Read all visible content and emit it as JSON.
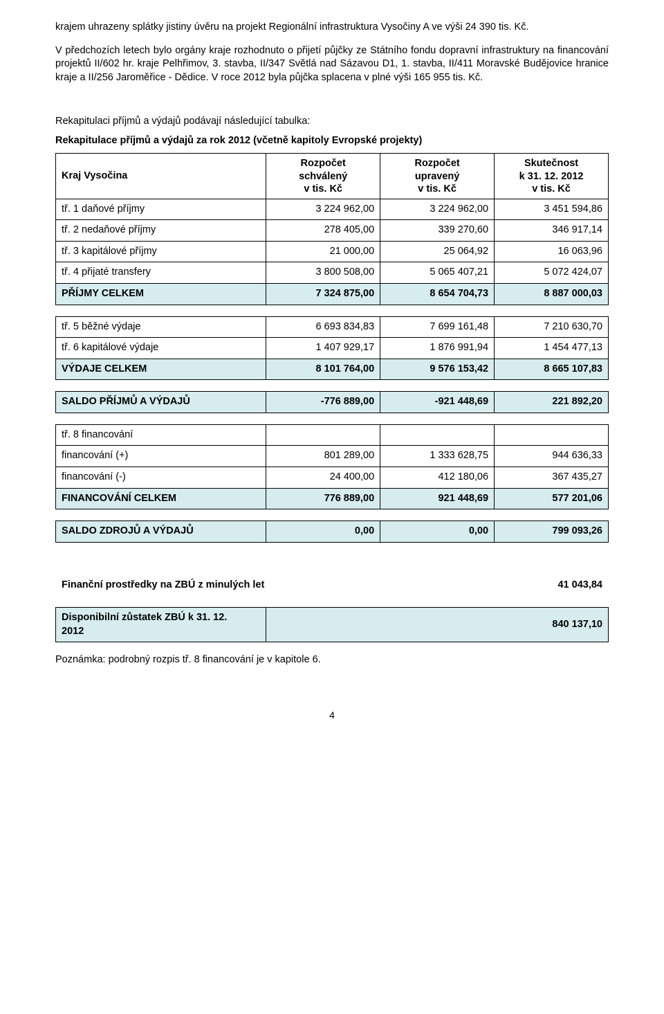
{
  "colors": {
    "highlight_bg": "#d6ecee",
    "border": "#000000",
    "text": "#000000",
    "background": "#ffffff"
  },
  "paragraphs": {
    "p1": "krajem uhrazeny splátky jistiny úvěru na projekt Regionální infrastruktura Vysočiny A ve výši 24 390 tis. Kč.",
    "p2": "V předchozích letech bylo orgány kraje rozhodnuto o přijetí půjčky ze Státního fondu dopravní infrastruktury na financování projektů II/602 hr. kraje Pelhřimov, 3. stavba, II/347 Světlá nad Sázavou D1, 1. stavba, II/411 Moravské Budějovice hranice kraje a II/256 Jaroměřice - Dědice. V roce 2012 byla půjčka splacena v plné výši 165 955 tis. Kč."
  },
  "recap_intro": "Rekapitulaci příjmů a výdajů podávají následující tabulka:",
  "recap_title": "Rekapitulace příjmů a výdajů za rok 2012 (včetně kapitoly Evropské projekty)",
  "table_head": {
    "entity": "Kraj Vysočina",
    "col1_l1": "Rozpočet",
    "col1_l2": "schválený",
    "col1_l3": "v tis. Kč",
    "col2_l1": "Rozpočet",
    "col2_l2": "upravený",
    "col2_l3": "v tis. Kč",
    "col3_l1": "Skutečnost",
    "col3_l2": "k 31. 12. 2012",
    "col3_l3": "v tis. Kč"
  },
  "income": {
    "rows": [
      {
        "label": "tř. 1  daňové příjmy",
        "c1": "3 224 962,00",
        "c2": "3 224 962,00",
        "c3": "3 451 594,86"
      },
      {
        "label": "tř. 2  nedaňové příjmy",
        "c1": "278 405,00",
        "c2": "339 270,60",
        "c3": "346 917,14"
      },
      {
        "label": "tř. 3  kapitálové příjmy",
        "c1": "21 000,00",
        "c2": "25 064,92",
        "c3": "16 063,96"
      },
      {
        "label": "tř. 4  přijaté transfery",
        "c1": "3 800 508,00",
        "c2": "5 065 407,21",
        "c3": "5 072 424,07"
      }
    ],
    "total": {
      "label": "PŘÍJMY CELKEM",
      "c1": "7 324 875,00",
      "c2": "8 654 704,73",
      "c3": "8 887 000,03"
    }
  },
  "expense": {
    "rows": [
      {
        "label": "tř. 5  běžné výdaje",
        "c1": "6 693 834,83",
        "c2": "7 699 161,48",
        "c3": "7 210 630,70"
      },
      {
        "label": "tř. 6  kapitálové výdaje",
        "c1": "1 407 929,17",
        "c2": "1 876 991,94",
        "c3": "1 454 477,13"
      }
    ],
    "total": {
      "label": "VÝDAJE CELKEM",
      "c1": "8 101 764,00",
      "c2": "9 576 153,42",
      "c3": "8 665 107,83"
    }
  },
  "saldo_pv": {
    "label": "SALDO PŘÍJMŮ A VÝDAJŮ",
    "c1": "-776 889,00",
    "c2": "-921 448,69",
    "c3": "221 892,20"
  },
  "financing": {
    "head": "tř. 8  financování",
    "rows": [
      {
        "label": "financování (+)",
        "c1": "801 289,00",
        "c2": "1 333 628,75",
        "c3": "944 636,33"
      },
      {
        "label": "financování (-)",
        "c1": "24 400,00",
        "c2": "412 180,06",
        "c3": "367 435,27"
      }
    ],
    "total": {
      "label": "FINANCOVÁNÍ CELKEM",
      "c1": "776 889,00",
      "c2": "921 448,69",
      "c3": "577 201,06"
    }
  },
  "saldo_zv": {
    "label": "SALDO ZDROJŮ A VÝDAJŮ",
    "c1": "0,00",
    "c2": "0,00",
    "c3": "799 093,26"
  },
  "zbu_prev": {
    "label": "Finanční prostředky na ZBÚ z minulých let",
    "value": "41 043,84"
  },
  "zbu_avail": {
    "label_l1": "Disponibilní zůstatek ZBÚ k 31. 12.",
    "label_l2": "2012",
    "value": "840 137,10"
  },
  "footer_note": "Poznámka: podrobný rozpis tř. 8 financování je v kapitole 6.",
  "page_number": "4"
}
